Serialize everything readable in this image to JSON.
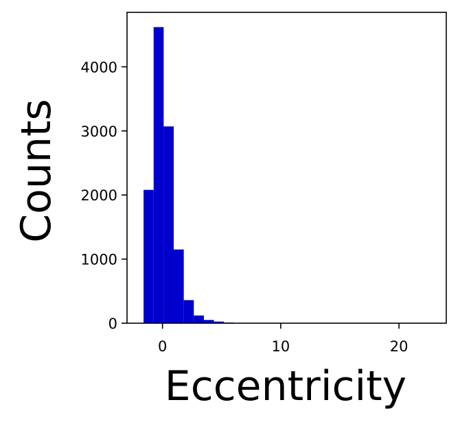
{
  "chart_data": {
    "type": "bar",
    "title": "",
    "xlabel": "Eccentricity",
    "ylabel": "Counts",
    "xlim": [
      -3,
      24
    ],
    "ylim": [
      0,
      4850
    ],
    "grid": false,
    "bar_color": "#0000cc",
    "bin_width": 0.85,
    "bins": [
      {
        "x0": -1.6,
        "count": 2080
      },
      {
        "x0": -0.75,
        "count": 4620
      },
      {
        "x0": 0.1,
        "count": 3070
      },
      {
        "x0": 0.95,
        "count": 1150
      },
      {
        "x0": 1.8,
        "count": 360
      },
      {
        "x0": 2.65,
        "count": 120
      },
      {
        "x0": 3.5,
        "count": 50
      },
      {
        "x0": 4.35,
        "count": 25
      },
      {
        "x0": 5.2,
        "count": 10
      },
      {
        "x0": 6.05,
        "count": 5
      },
      {
        "x0": 6.9,
        "count": 3
      },
      {
        "x0": 7.75,
        "count": 2
      },
      {
        "x0": 8.6,
        "count": 1
      }
    ],
    "xticks": [
      {
        "value": 0,
        "label": "0"
      },
      {
        "value": 10,
        "label": "10"
      },
      {
        "value": 20,
        "label": "20"
      }
    ],
    "yticks": [
      {
        "value": 0,
        "label": "0"
      },
      {
        "value": 1000,
        "label": "1000"
      },
      {
        "value": 2000,
        "label": "2000"
      },
      {
        "value": 3000,
        "label": "3000"
      },
      {
        "value": 4000,
        "label": "4000"
      }
    ]
  }
}
